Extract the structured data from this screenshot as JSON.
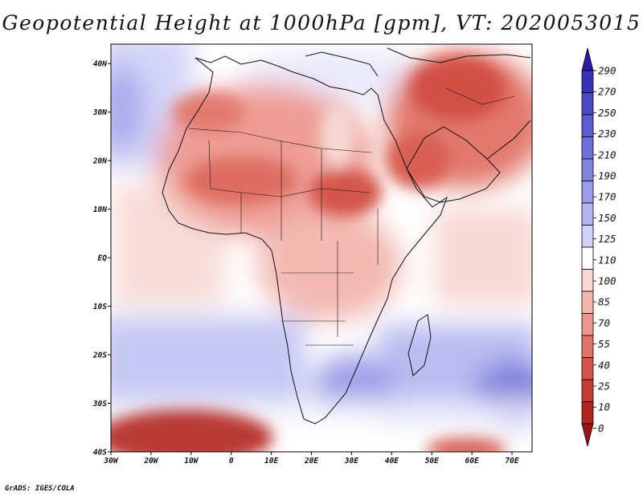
{
  "title": "Geopotential Height at 1000hPa [gpm], VT: 2020053015",
  "credit": "GrADS: IGES/COLA",
  "chart_data": {
    "type": "heatmap",
    "variable": "Geopotential Height at 1000hPa",
    "units": "gpm",
    "valid_time": "2020053015",
    "lon_range": [
      -30,
      75
    ],
    "lat_range": [
      -40,
      44
    ],
    "x_tick_labels": [
      "30W",
      "20W",
      "10W",
      "0",
      "10E",
      "20E",
      "30E",
      "40E",
      "50E",
      "60E",
      "70E"
    ],
    "y_tick_labels": [
      "40N",
      "30N",
      "20N",
      "10N",
      "EQ",
      "10S",
      "20S",
      "30S",
      "40S"
    ],
    "colorbar_levels": [
      "290",
      "270",
      "250",
      "230",
      "210",
      "190",
      "170",
      "150",
      "125",
      "110",
      "100",
      "85",
      "70",
      "55",
      "40",
      "25",
      "10",
      "0"
    ],
    "colorbar_colors": [
      "#2b1aa8",
      "#3a32b6",
      "#4a48c2",
      "#5b5ccd",
      "#6e72d7",
      "#8285e0",
      "#9a9de8",
      "#b4b6f0",
      "#d2d3f8",
      "#ffffff",
      "#fad7d3",
      "#f4b7b0",
      "#ec958b",
      "#e07468",
      "#d4564b",
      "#c43c33",
      "#b02623",
      "#9a1417"
    ]
  }
}
